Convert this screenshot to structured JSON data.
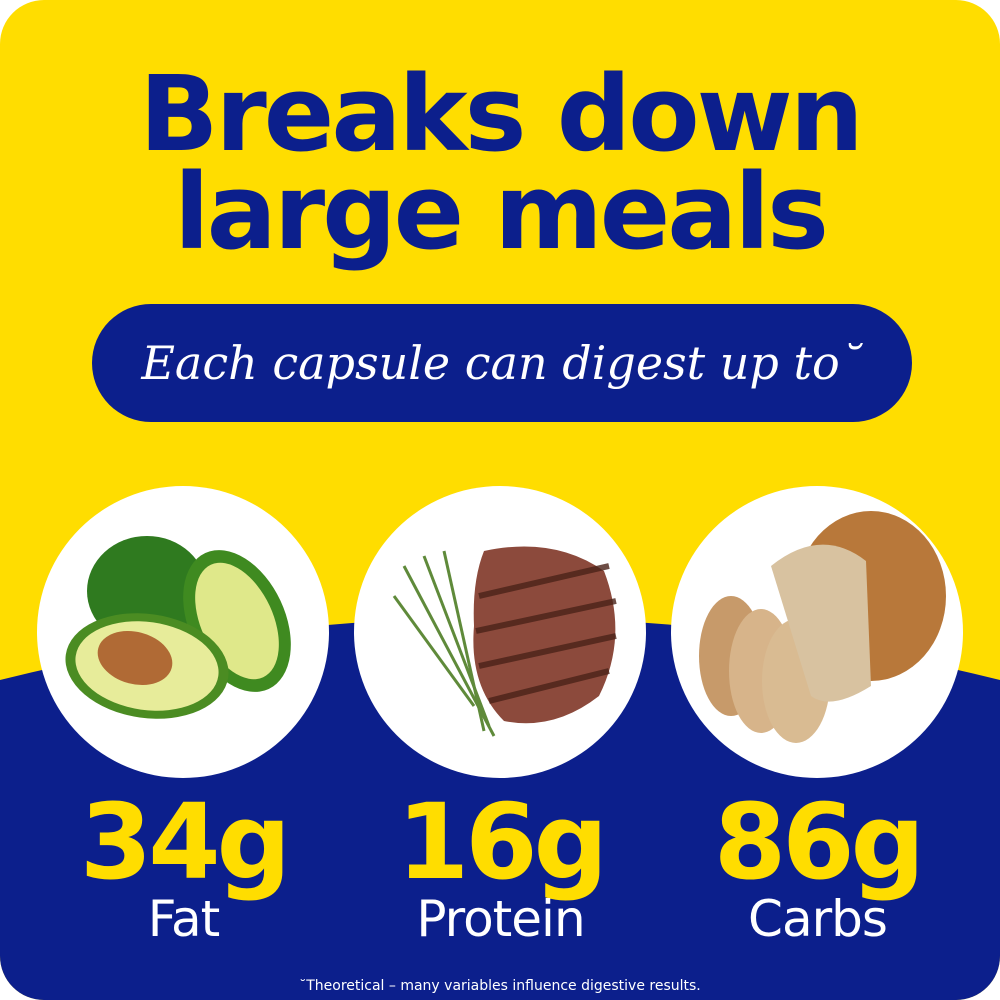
{
  "title_line1": "Breaks down",
  "title_line2": "large meals",
  "subtitle": "Each capsule can digest up to˘",
  "items": [
    {
      "amount": "34g",
      "label": "Fat",
      "image": "avocado"
    },
    {
      "amount": "16g",
      "label": "Protein",
      "image": "steak-with-rosemary"
    },
    {
      "amount": "86g",
      "label": "Carbs",
      "image": "bread-loaf"
    }
  ],
  "footnote": "˘Theoretical – many variables influence digestive results.",
  "colors": {
    "yellow": "#FFDD00",
    "blue": "#0C1F8C"
  }
}
